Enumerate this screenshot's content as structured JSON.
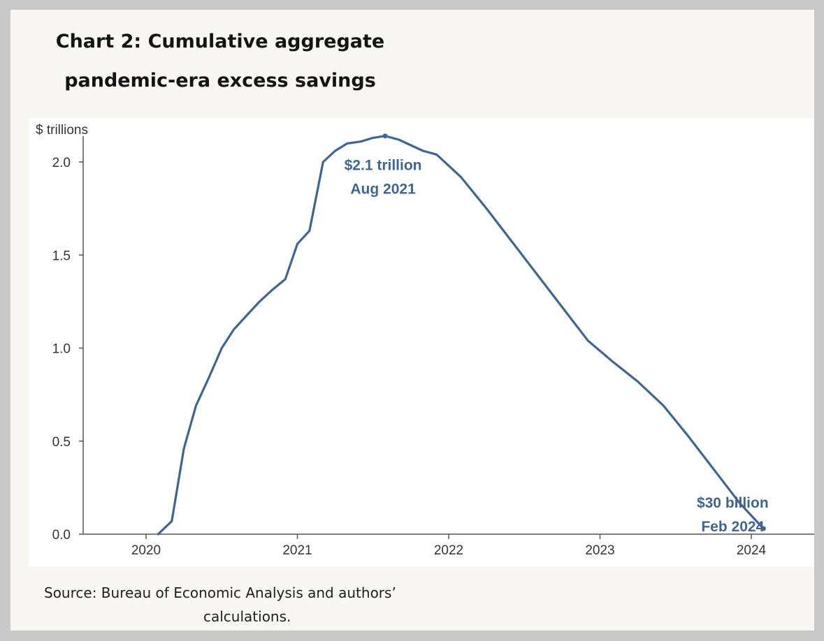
{
  "title_line1": "Chart 2: Cumulative aggregate",
  "title_line2": "pandemic-era excess savings",
  "source_line1": "Source: Bureau of Economic Analysis and authors’",
  "source_line2": "calculations.",
  "colors": {
    "line": "#3f6590",
    "axis": "#555555",
    "text": "#333333"
  },
  "chart_data": {
    "type": "line",
    "ylabel": "$ trillions",
    "xlabel": "",
    "xlim": [
      2020.0,
      2024.25
    ],
    "ylim": [
      0,
      2.2
    ],
    "x_ticks": [
      {
        "value": 2020.0,
        "label": "2020"
      },
      {
        "value": 2021.0,
        "label": "2021"
      },
      {
        "value": 2022.0,
        "label": "2022"
      },
      {
        "value": 2023.0,
        "label": "2023"
      },
      {
        "value": 2024.0,
        "label": "2024"
      }
    ],
    "y_ticks": [
      {
        "value": 0.0,
        "label": "0.0"
      },
      {
        "value": 0.5,
        "label": "0.5"
      },
      {
        "value": 1.0,
        "label": "1.0"
      },
      {
        "value": 1.5,
        "label": "1.5"
      },
      {
        "value": 2.0,
        "label": "2.0"
      }
    ],
    "grid": false,
    "series": [
      {
        "x": [
          2020.08,
          2020.17,
          2020.25,
          2020.33,
          2020.42,
          2020.5,
          2020.58,
          2020.67,
          2020.75,
          2020.83,
          2020.92,
          2021.0,
          2021.08,
          2021.17,
          2021.25,
          2021.33,
          2021.42,
          2021.5,
          2021.58,
          2021.67,
          2021.75,
          2021.83,
          2021.92,
          2022.08,
          2022.25,
          2022.42,
          2022.58,
          2022.75,
          2022.92,
          2023.08,
          2023.25,
          2023.42,
          2023.58,
          2023.75,
          2023.92,
          2024.08
        ],
        "y": [
          0.0,
          0.07,
          0.46,
          0.69,
          0.85,
          1.0,
          1.1,
          1.18,
          1.25,
          1.31,
          1.37,
          1.56,
          1.63,
          2.0,
          2.06,
          2.1,
          2.11,
          2.13,
          2.14,
          2.12,
          2.09,
          2.06,
          2.04,
          1.92,
          1.75,
          1.57,
          1.4,
          1.22,
          1.04,
          0.93,
          0.82,
          0.69,
          0.53,
          0.35,
          0.17,
          0.03
        ]
      }
    ],
    "annotations": [
      {
        "x": 2021.58,
        "y": 2.14,
        "line1": "$2.1 trillion",
        "line2": "Aug 2021"
      },
      {
        "x": 2024.08,
        "y": 0.03,
        "line1": "$30 billion",
        "line2": "Feb 2024"
      }
    ]
  }
}
